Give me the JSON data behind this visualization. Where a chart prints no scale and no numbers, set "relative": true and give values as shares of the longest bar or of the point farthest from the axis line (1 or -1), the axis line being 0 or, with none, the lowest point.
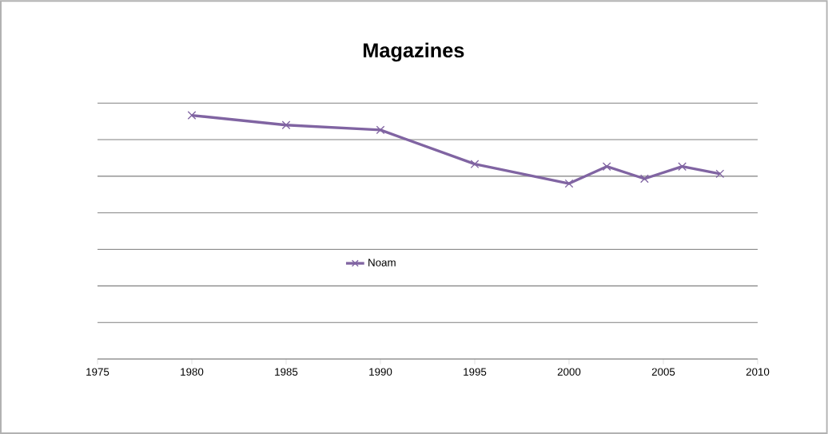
{
  "chart_data": {
    "type": "line",
    "title": "Magazines",
    "relative": true,
    "x": [
      1980,
      1985,
      1990,
      1995,
      2000,
      2002,
      2004,
      2006,
      2008
    ],
    "series": [
      {
        "name": "Noam",
        "color": "#8064a2",
        "values": [
          1,
          0.96,
          0.94,
          0.8,
          0.72,
          0.79,
          0.74,
          0.79,
          0.76
        ]
      }
    ],
    "xlim": [
      1975,
      2010
    ],
    "xticks": [
      1975,
      1980,
      1985,
      1990,
      1995,
      2000,
      2005,
      2010
    ],
    "grid": "y",
    "legend": "center",
    "marker": "cross",
    "line_style": "solid"
  }
}
